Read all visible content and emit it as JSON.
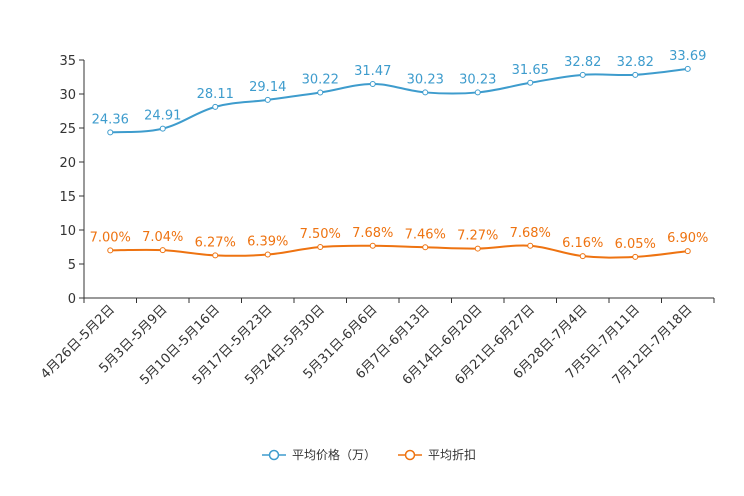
{
  "chart_data": {
    "type": "line",
    "categories": [
      "4月26日-5月2日",
      "5月3日-5月9日",
      "5月10日-5月16日",
      "5月17日-5月23日",
      "5月24日-5月30日",
      "5月31日-6月6日",
      "6月7日-6月13日",
      "6月14日-6月20日",
      "6月21日-6月27日",
      "6月28日-7月4日",
      "7月5日-7月11日",
      "7月12日-7月18日"
    ],
    "ylim": [
      0,
      35
    ],
    "yticks": [
      0,
      5,
      10,
      15,
      20,
      25,
      30,
      35
    ],
    "series": [
      {
        "name": "平均价格（万）",
        "color": "#3e9ccd",
        "values": [
          24.36,
          24.91,
          28.11,
          29.14,
          30.22,
          31.47,
          30.23,
          30.23,
          31.65,
          32.82,
          32.82,
          33.69
        ],
        "labels": [
          "24.36",
          "24.91",
          "28.11",
          "29.14",
          "30.22",
          "31.47",
          "30.23",
          "30.23",
          "31.65",
          "32.82",
          "32.82",
          "33.69"
        ]
      },
      {
        "name": "平均折扣",
        "color": "#ee7311",
        "values": [
          7.0,
          7.04,
          6.27,
          6.39,
          7.5,
          7.68,
          7.46,
          7.27,
          7.68,
          6.16,
          6.05,
          6.9
        ],
        "labels": [
          "7.00%",
          "7.04%",
          "6.27%",
          "6.39%",
          "7.50%",
          "7.68%",
          "7.46%",
          "7.27%",
          "7.68%",
          "6.16%",
          "6.05%",
          "6.90%"
        ]
      }
    ],
    "legend_position": "bottom",
    "grid": false
  }
}
